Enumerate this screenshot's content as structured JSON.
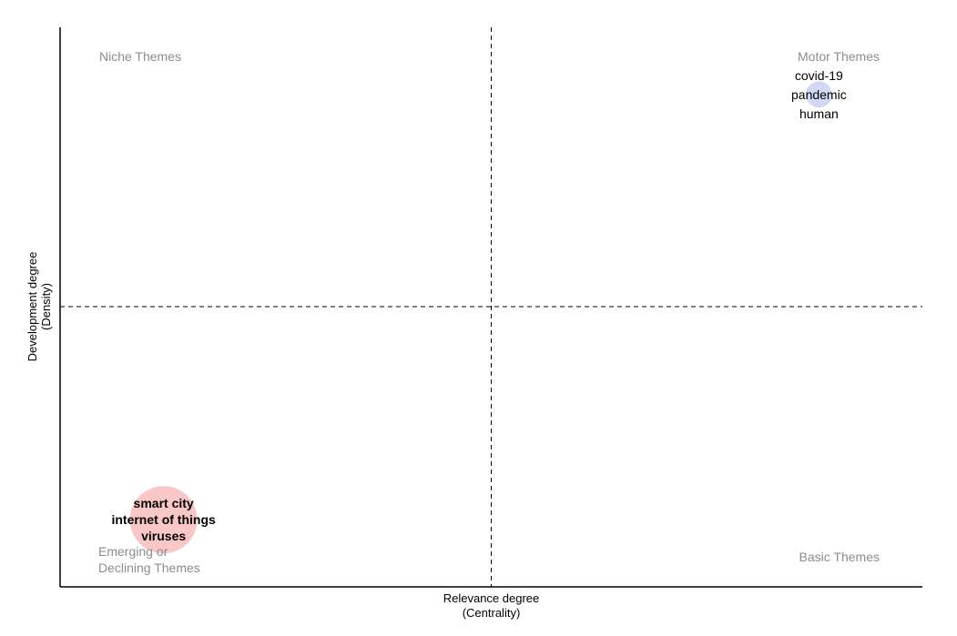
{
  "chart_data": {
    "type": "scatter",
    "subtype": "thematic-map",
    "xlabel": "Relevance degree",
    "xlabel_sub": "(Centrality)",
    "ylabel": "Development degree",
    "ylabel_sub": "(Density)",
    "axes_ticks": false,
    "grid": false,
    "quadrant_labels": {
      "top_left": "Niche Themes",
      "top_right": "Motor Themes",
      "bottom_left": [
        "Emerging or",
        "Declining Themes"
      ],
      "bottom_right": "Basic Themes"
    },
    "reference_lines": {
      "vertical": 0.5,
      "horizontal": 0.5,
      "style": "dashed"
    },
    "clusters": [
      {
        "labels": [
          "covid-19",
          "pandemic",
          "human"
        ],
        "x": 0.88,
        "y": 0.88,
        "size": 0.1,
        "color": "#bcc8ee"
      },
      {
        "labels": [
          "smart city",
          "internet of things",
          "viruses"
        ],
        "x": 0.12,
        "y": 0.12,
        "size": 1.0,
        "color": "#f7b4b4"
      }
    ]
  }
}
